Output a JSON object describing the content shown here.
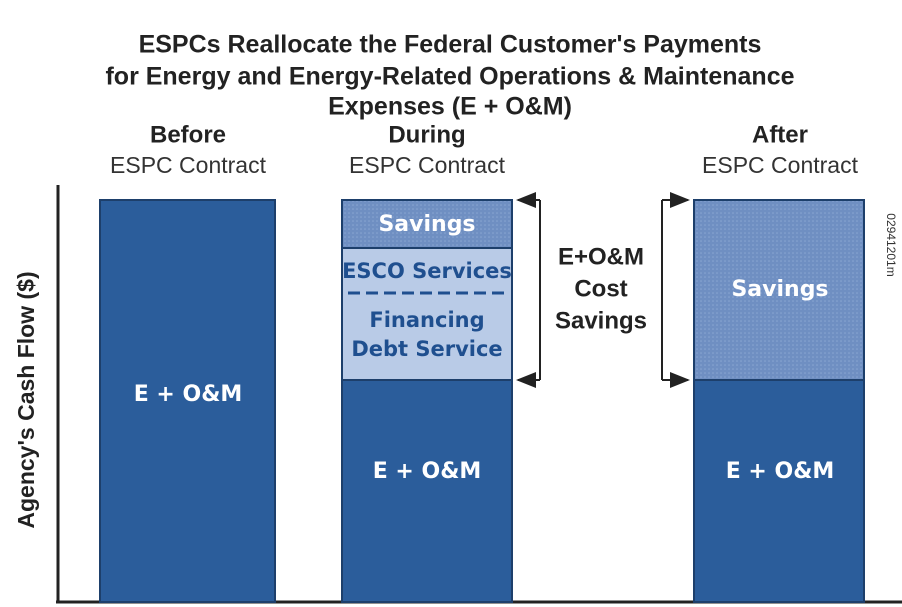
{
  "title": [
    "ESPCs Reallocate the Federal Customer's Payments",
    "for Energy and Energy-Related Operations & Maintenance",
    "Expenses (E + O&M)"
  ],
  "y_axis_label": "Agency's Cash Flow ($)",
  "columns": [
    {
      "header": "Before",
      "subheader": "ESPC Contract",
      "segments": [
        "E + O&M"
      ]
    },
    {
      "header": "During",
      "subheader": "ESPC Contract",
      "segments": [
        "Savings",
        "ESCO Services",
        "Financing",
        "Debt Service",
        "E + O&M"
      ]
    },
    {
      "header": "After",
      "subheader": "ESPC Contract",
      "segments": [
        "Savings",
        "E + O&M"
      ]
    }
  ],
  "bracket_label": [
    "E+O&M",
    "Cost",
    "Savings"
  ],
  "figure_id": "02941201m"
}
